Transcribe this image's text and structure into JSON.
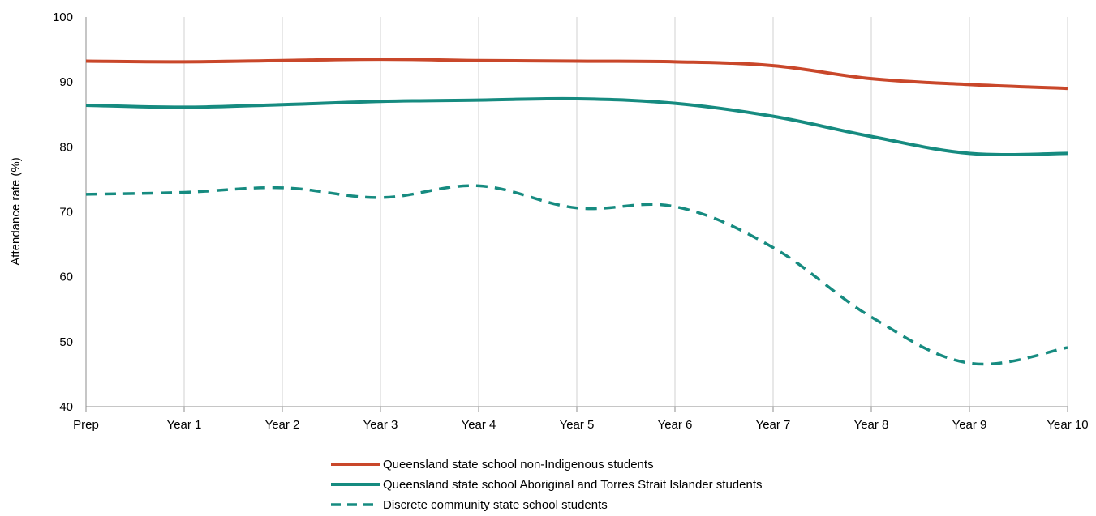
{
  "chart_data": {
    "type": "line",
    "title": "",
    "xlabel": "",
    "ylabel": "Attendance rate (%)",
    "ylim": [
      40,
      100
    ],
    "yticks": [
      40,
      50,
      60,
      70,
      80,
      90,
      100
    ],
    "grid": "vertical",
    "legend_position": "bottom-center",
    "categories": [
      "Prep",
      "Year 1",
      "Year 2",
      "Year 3",
      "Year 4",
      "Year 5",
      "Year 6",
      "Year 7",
      "Year 8",
      "Year 9",
      "Year 10"
    ],
    "series": [
      {
        "name": "Queensland state school non-Indigenous students",
        "color": "#c9472a",
        "style": "solid",
        "values": [
          93.2,
          93.1,
          93.3,
          93.5,
          93.3,
          93.2,
          93.1,
          92.5,
          90.5,
          89.6,
          89.0
        ]
      },
      {
        "name": "Queensland state school Aboriginal and Torres Strait Islander students",
        "color": "#168b80",
        "style": "solid",
        "values": [
          86.4,
          86.1,
          86.5,
          87.0,
          87.2,
          87.4,
          86.7,
          84.7,
          81.6,
          79.0,
          79.0
        ]
      },
      {
        "name": "Discrete community state school students",
        "color": "#168b80",
        "style": "dashed",
        "values": [
          72.7,
          73.0,
          73.7,
          72.2,
          74.0,
          70.6,
          70.8,
          64.5,
          53.8,
          46.7,
          49.1
        ]
      }
    ]
  }
}
